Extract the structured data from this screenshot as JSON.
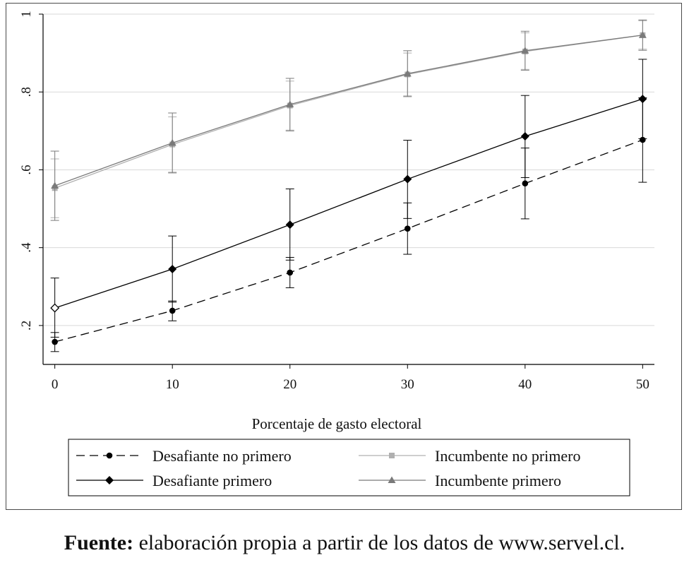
{
  "chart_data": {
    "type": "line",
    "title": "",
    "xlabel": "Porcentaje de gasto electoral",
    "ylabel": "",
    "x": [
      0,
      10,
      20,
      30,
      40,
      50
    ],
    "xlim": [
      -1,
      51
    ],
    "ylim": [
      0.1,
      1.0
    ],
    "xticks": [
      0,
      10,
      20,
      30,
      40,
      50
    ],
    "xtick_labels": [
      "0",
      "10",
      "20",
      "30",
      "40",
      "50"
    ],
    "yticks": [
      0.2,
      0.4,
      0.6,
      0.8,
      1.0
    ],
    "ytick_labels": [
      ".2",
      ".4",
      ".6",
      ".8",
      "1"
    ],
    "grid": "horizontal",
    "legend_position": "bottom",
    "series": [
      {
        "name": "Desafiante no primero",
        "values": [
          0.158,
          0.238,
          0.336,
          0.449,
          0.565,
          0.677
        ],
        "ci_low": [
          0.133,
          0.212,
          0.297,
          0.383,
          0.474,
          0.568
        ],
        "ci_high": [
          0.182,
          0.263,
          0.375,
          0.515,
          0.656,
          0.785
        ],
        "color": "#000000",
        "line": "dashed",
        "marker": "circle"
      },
      {
        "name": "Desafiante primero",
        "values": [
          0.245,
          0.345,
          0.459,
          0.576,
          0.686,
          0.782
        ],
        "ci_low": [
          0.17,
          0.26,
          0.368,
          0.475,
          0.58,
          0.68
        ],
        "ci_high": [
          0.322,
          0.43,
          0.551,
          0.676,
          0.791,
          0.884
        ],
        "color": "#000000",
        "line": "solid",
        "marker": "diamond"
      },
      {
        "name": "Incumbente no primero",
        "values": [
          0.553,
          0.665,
          0.765,
          0.845,
          0.904,
          0.946
        ],
        "ci_low": [
          0.477,
          0.594,
          0.702,
          0.79,
          0.858,
          0.91
        ],
        "ci_high": [
          0.628,
          0.736,
          0.828,
          0.9,
          0.952,
          0.983
        ],
        "color": "#b0b0b0",
        "line": "solid",
        "marker": "square"
      },
      {
        "name": "Incumbente primero",
        "values": [
          0.559,
          0.669,
          0.768,
          0.847,
          0.906,
          0.946
        ],
        "ci_low": [
          0.47,
          0.592,
          0.7,
          0.788,
          0.856,
          0.907
        ],
        "ci_high": [
          0.648,
          0.746,
          0.835,
          0.906,
          0.956,
          0.985
        ],
        "color": "#7a7a7a",
        "line": "solid",
        "marker": "triangle"
      }
    ]
  },
  "source": {
    "bold": "Fuente:",
    "text": " elaboración propia a partir de los datos de www.servel.cl."
  }
}
